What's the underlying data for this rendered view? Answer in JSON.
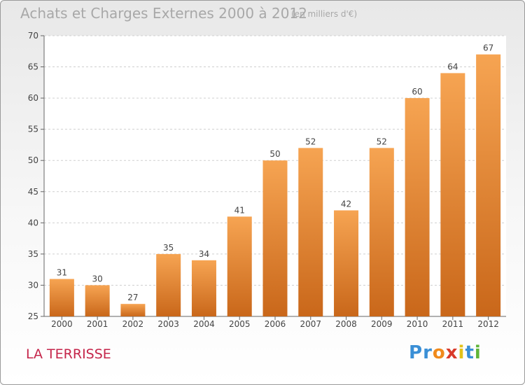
{
  "title": "Achats et Charges Externes 2000 à 2012",
  "subtitle": "(en milliers d'€)",
  "place": "LA TERRISSE",
  "logo": {
    "letters": [
      "P",
      "r",
      "o",
      "x",
      "i",
      "t",
      "i"
    ],
    "colors": [
      "#3a8fd6",
      "#3a8fd6",
      "#f08a1c",
      "#d93a2a",
      "#e3c21a",
      "#3a8fd6",
      "#5fb538"
    ]
  },
  "colors": {
    "bar_top": "#f6a452",
    "bar_bottom": "#c9671a",
    "title": "#a8a8a8",
    "place": "#c5254a"
  },
  "chart_data": {
    "type": "bar",
    "categories": [
      "2000",
      "2001",
      "2002",
      "2003",
      "2004",
      "2005",
      "2006",
      "2007",
      "2008",
      "2009",
      "2010",
      "2011",
      "2012"
    ],
    "values": [
      31,
      30,
      27,
      35,
      34,
      41,
      50,
      52,
      42,
      52,
      60,
      64,
      67
    ],
    "ylim": [
      25,
      70
    ],
    "yticks": [
      25,
      30,
      35,
      40,
      45,
      50,
      55,
      60,
      65,
      70
    ],
    "grid": true,
    "data_labels": true
  }
}
